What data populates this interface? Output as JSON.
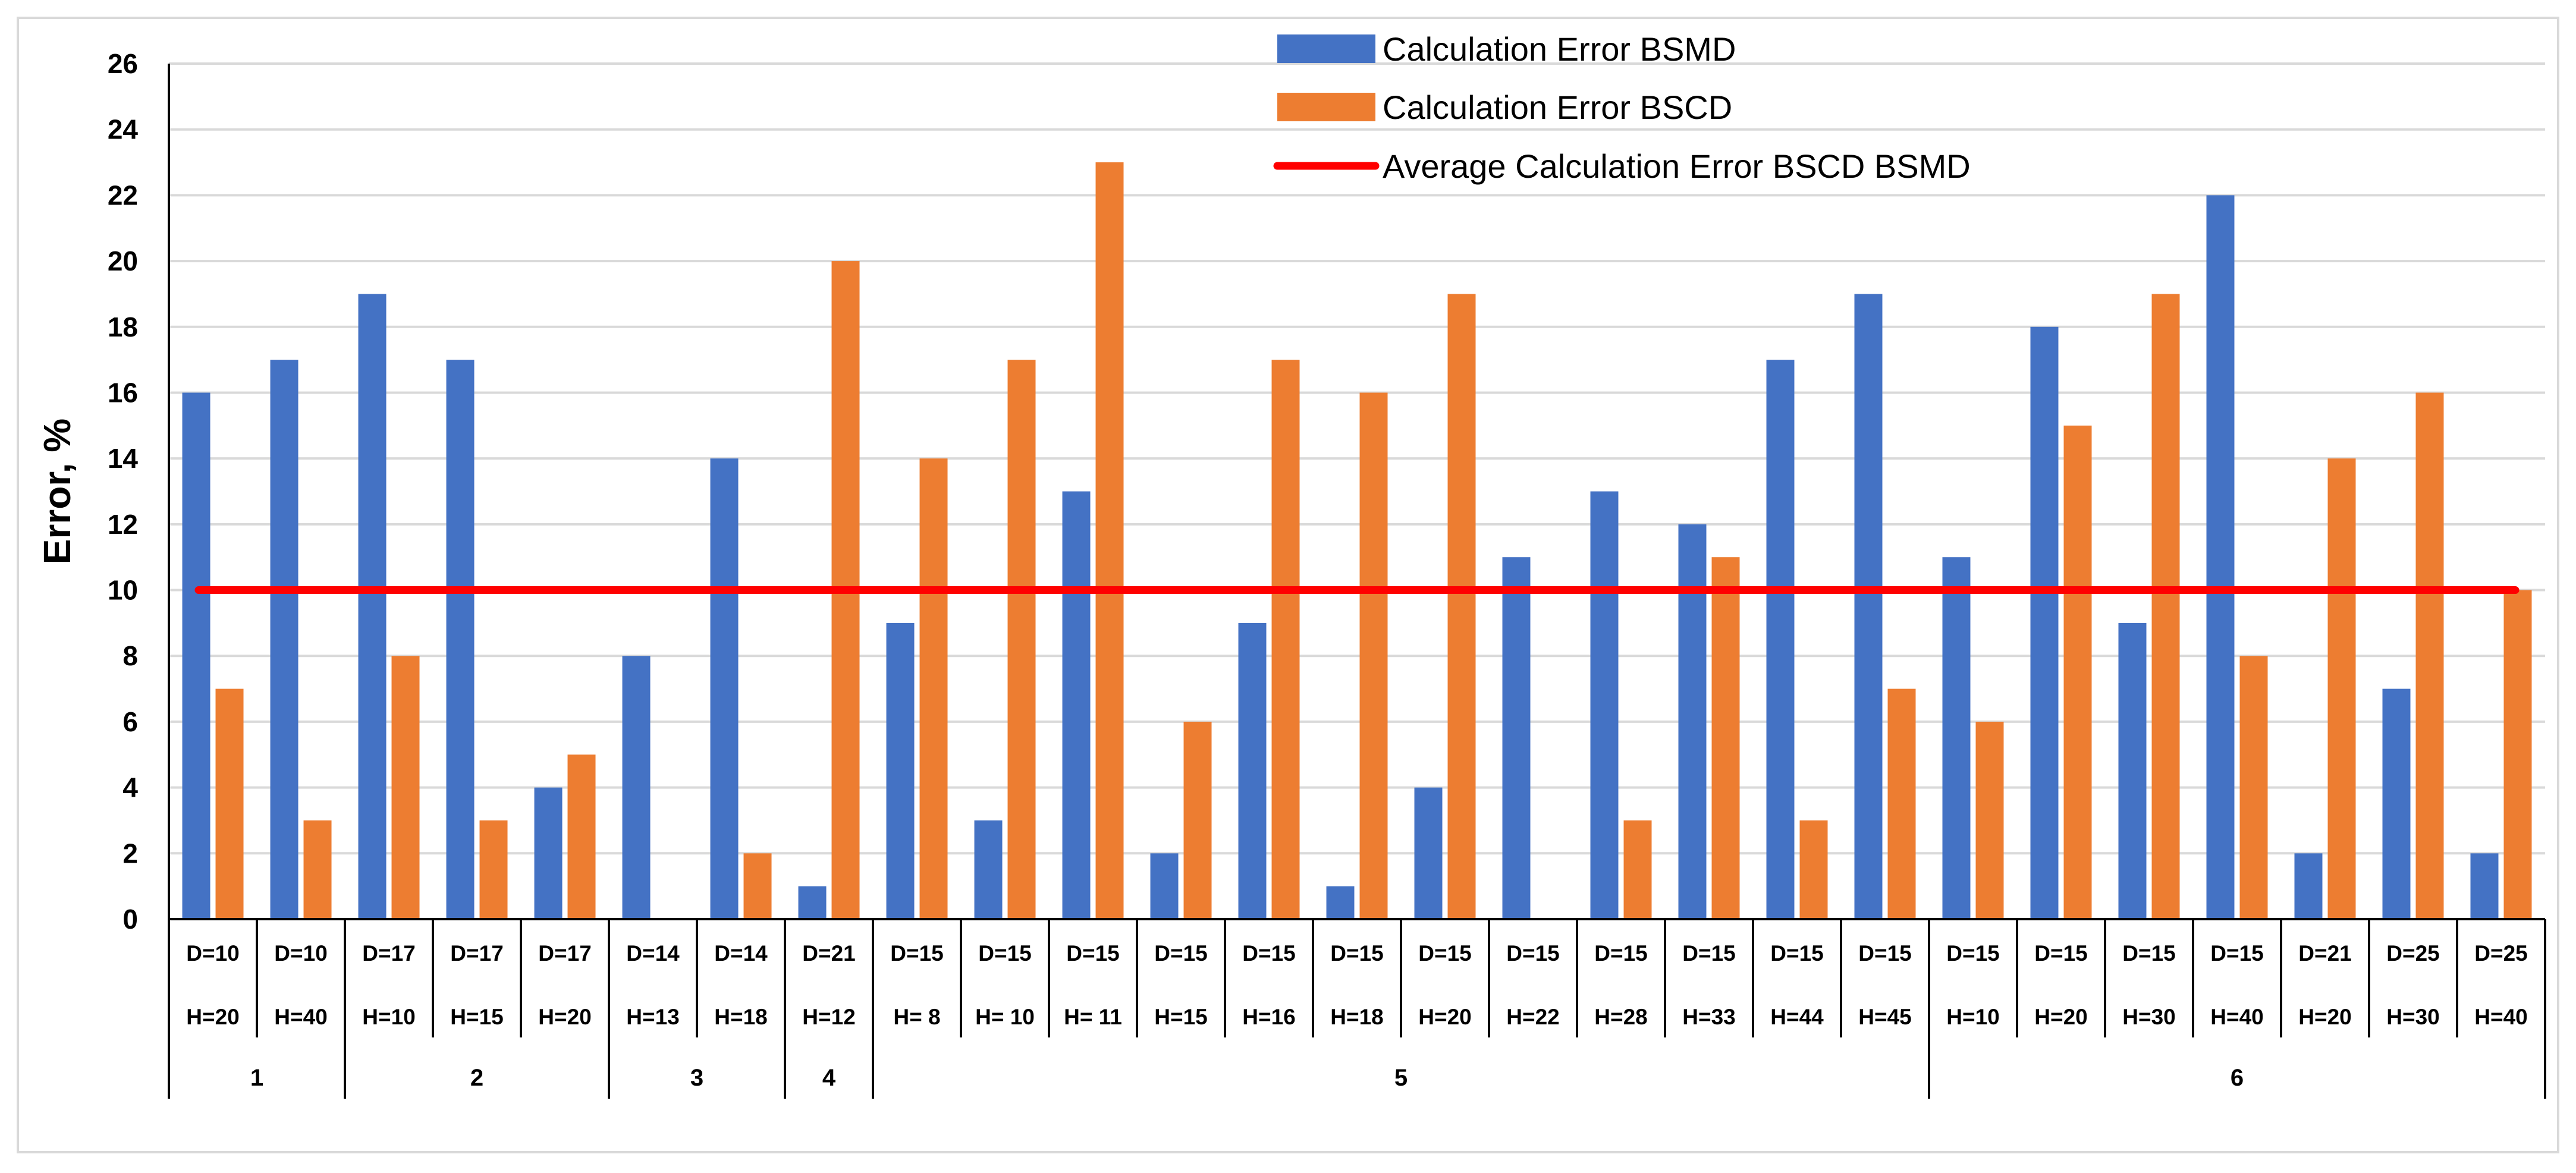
{
  "chart_data": {
    "type": "bar",
    "title": "",
    "xlabel": "",
    "ylabel": "Error, %",
    "ylim": [
      0,
      26
    ],
    "yticks": [
      0,
      2,
      4,
      6,
      8,
      10,
      12,
      14,
      16,
      18,
      20,
      22,
      24,
      26
    ],
    "grid": true,
    "legend_position": "top-right",
    "categories": [
      {
        "line1": "D=10",
        "line2": "H=20"
      },
      {
        "line1": "D=10",
        "line2": "H=40"
      },
      {
        "line1": "D=17",
        "line2": "H=10"
      },
      {
        "line1": "D=17",
        "line2": "H=15"
      },
      {
        "line1": "D=17",
        "line2": "H=20"
      },
      {
        "line1": "D=14",
        "line2": "H=13"
      },
      {
        "line1": "D=14",
        "line2": "H=18"
      },
      {
        "line1": "D=21",
        "line2": "H=12"
      },
      {
        "line1": "D=15",
        "line2": "H= 8"
      },
      {
        "line1": "D=15",
        "line2": "H= 10"
      },
      {
        "line1": "D=15",
        "line2": "H= 11"
      },
      {
        "line1": "D=15",
        "line2": "H=15"
      },
      {
        "line1": "D=15",
        "line2": "H=16"
      },
      {
        "line1": "D=15",
        "line2": "H=18"
      },
      {
        "line1": "D=15",
        "line2": "H=20"
      },
      {
        "line1": "D=15",
        "line2": "H=22"
      },
      {
        "line1": "D=15",
        "line2": "H=28"
      },
      {
        "line1": "D=15",
        "line2": "H=33"
      },
      {
        "line1": "D=15",
        "line2": "H=44"
      },
      {
        "line1": "D=15",
        "line2": "H=45"
      },
      {
        "line1": "D=15",
        "line2": "H=10"
      },
      {
        "line1": "D=15",
        "line2": "H=20"
      },
      {
        "line1": "D=15",
        "line2": "H=30"
      },
      {
        "line1": "D=15",
        "line2": "H=40"
      },
      {
        "line1": "D=21",
        "line2": "H=20"
      },
      {
        "line1": "D=25",
        "line2": "H=30"
      },
      {
        "line1": "D=25",
        "line2": "H=40"
      }
    ],
    "groups": [
      {
        "label": "1",
        "start": 0,
        "count": 2
      },
      {
        "label": "2",
        "start": 2,
        "count": 3
      },
      {
        "label": "3",
        "start": 5,
        "count": 2
      },
      {
        "label": "4",
        "start": 7,
        "count": 1
      },
      {
        "label": "5",
        "start": 8,
        "count": 12
      },
      {
        "label": "6",
        "start": 20,
        "count": 7
      }
    ],
    "series": [
      {
        "name": "Calculation Error BSMD",
        "type": "bar",
        "color": "#4472C4",
        "values": [
          16,
          17,
          19,
          17,
          4,
          8,
          14,
          1,
          9,
          3,
          13,
          2,
          9,
          1,
          4,
          11,
          13,
          12,
          17,
          19,
          11,
          18,
          9,
          22,
          2,
          7,
          2
        ]
      },
      {
        "name": "Calculation Error BSCD",
        "type": "bar",
        "color": "#ED7D31",
        "values": [
          7,
          3,
          8,
          3,
          5,
          0,
          2,
          20,
          14,
          17,
          23,
          6,
          17,
          16,
          19,
          0,
          3,
          11,
          3,
          7,
          6,
          15,
          19,
          8,
          14,
          16,
          10
        ]
      },
      {
        "name": "Average Calculation Error BSCD BSMD",
        "type": "line",
        "color": "#FF0000",
        "value": 10
      }
    ]
  }
}
